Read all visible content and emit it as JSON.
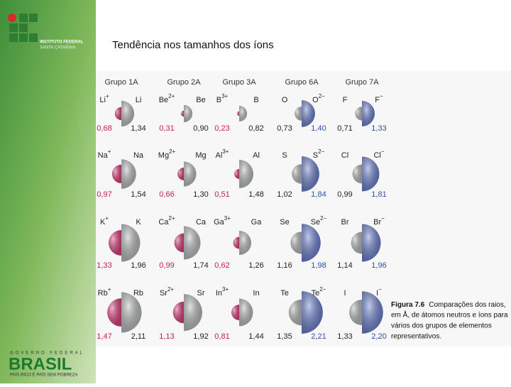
{
  "logo": {
    "line1": "INSTITUTO FEDERAL",
    "line2": "SANTA CATARINA"
  },
  "title": "Tendência nos tamanhos dos íons",
  "footer": {
    "top": "GOVERNO FEDERAL",
    "brand": "BRASIL",
    "slogan": "PAÍS RICO É PAÍS SEM POBREZA"
  },
  "figure": {
    "groups": [
      {
        "name": "Grupo 1A",
        "ion_side": "left",
        "ion_color": "#e0407f",
        "rows": [
          [
            {
              "symbol": "Li",
              "charge": "+",
              "radius": {
                "value": 0.68,
                "label": "0,68"
              }
            },
            {
              "symbol": "Li",
              "radius": {
                "value": 1.34,
                "label": "1,34"
              }
            }
          ],
          [
            {
              "symbol": "Na",
              "charge": "+",
              "radius": {
                "value": 0.97,
                "label": "0,97"
              }
            },
            {
              "symbol": "Na",
              "radius": {
                "value": 1.54,
                "label": "1,54"
              }
            }
          ],
          [
            {
              "symbol": "K",
              "charge": "+",
              "radius": {
                "value": 1.33,
                "label": "1,33"
              }
            },
            {
              "symbol": "K",
              "radius": {
                "value": 1.96,
                "label": "1,96"
              }
            }
          ],
          [
            {
              "symbol": "Rb",
              "charge": "+",
              "radius": {
                "value": 1.47,
                "label": "1,47"
              }
            },
            {
              "symbol": "Rb",
              "radius": {
                "value": 2.11,
                "label": "2,11"
              }
            }
          ]
        ]
      },
      {
        "name": "Grupo 2A",
        "ion_side": "left",
        "ion_color": "#e0407f",
        "rows": [
          [
            {
              "symbol": "Be",
              "charge": "2+",
              "radius": {
                "value": 0.31,
                "label": "0,31"
              }
            },
            {
              "symbol": "Be",
              "radius": {
                "value": 0.9,
                "label": "0,90"
              }
            }
          ],
          [
            {
              "symbol": "Mg",
              "charge": "2+",
              "radius": {
                "value": 0.66,
                "label": "0,66"
              }
            },
            {
              "symbol": "Mg",
              "radius": {
                "value": 1.3,
                "label": "1,30"
              }
            }
          ],
          [
            {
              "symbol": "Ca",
              "charge": "2+",
              "radius": {
                "value": 0.99,
                "label": "0,99"
              }
            },
            {
              "symbol": "Ca",
              "radius": {
                "value": 1.74,
                "label": "1,74"
              }
            }
          ],
          [
            {
              "symbol": "Sr",
              "charge": "2+",
              "radius": {
                "value": 1.13,
                "label": "1,13"
              }
            },
            {
              "symbol": "Sr",
              "radius": {
                "value": 1.92,
                "label": "1,92"
              }
            }
          ]
        ]
      },
      {
        "name": "Grupo 3A",
        "ion_side": "left",
        "ion_color": "#e0407f",
        "rows": [
          [
            {
              "symbol": "B",
              "charge": "3+",
              "radius": {
                "value": 0.23,
                "label": "0,23"
              }
            },
            {
              "symbol": "B",
              "radius": {
                "value": 0.82,
                "label": "0,82"
              }
            }
          ],
          [
            {
              "symbol": "Al",
              "charge": "3+",
              "radius": {
                "value": 0.51,
                "label": "0,51"
              }
            },
            {
              "symbol": "Al",
              "radius": {
                "value": 1.48,
                "label": "1,48"
              }
            }
          ],
          [
            {
              "symbol": "Ga",
              "charge": "3+",
              "radius": {
                "value": 0.62,
                "label": "0,62"
              }
            },
            {
              "symbol": "Ga",
              "radius": {
                "value": 1.26,
                "label": "1,26"
              }
            }
          ],
          [
            {
              "symbol": "In",
              "charge": "3+",
              "radius": {
                "value": 0.81,
                "label": "0,81"
              }
            },
            {
              "symbol": "In",
              "radius": {
                "value": 1.44,
                "label": "1,44"
              }
            }
          ]
        ]
      },
      {
        "name": "Grupo 6A",
        "ion_side": "right",
        "ion_color": "#6a7fd0",
        "rows": [
          [
            {
              "symbol": "O",
              "radius": {
                "value": 0.73,
                "label": "0,73"
              }
            },
            {
              "symbol": "O",
              "charge": "2−",
              "radius": {
                "value": 1.4,
                "label": "1,40"
              }
            }
          ],
          [
            {
              "symbol": "S",
              "radius": {
                "value": 1.02,
                "label": "1,02"
              }
            },
            {
              "symbol": "S",
              "charge": "2−",
              "radius": {
                "value": 1.84,
                "label": "1,84"
              }
            }
          ],
          [
            {
              "symbol": "Se",
              "radius": {
                "value": 1.16,
                "label": "1,16"
              }
            },
            {
              "symbol": "Se",
              "charge": "2−",
              "radius": {
                "value": 1.98,
                "label": "1,98"
              }
            }
          ],
          [
            {
              "symbol": "Te",
              "radius": {
                "value": 1.35,
                "label": "1,35"
              }
            },
            {
              "symbol": "Te",
              "charge": "2−",
              "radius": {
                "value": 2.21,
                "label": "2,21"
              }
            }
          ]
        ]
      },
      {
        "name": "Grupo 7A",
        "ion_side": "right",
        "ion_color": "#6a7fd0",
        "rows": [
          [
            {
              "symbol": "F",
              "radius": {
                "value": 0.71,
                "label": "0,71"
              }
            },
            {
              "symbol": "F",
              "charge": "−",
              "radius": {
                "value": 1.33,
                "label": "1,33"
              }
            }
          ],
          [
            {
              "symbol": "Cl",
              "radius": {
                "value": 0.99,
                "label": "0,99"
              }
            },
            {
              "symbol": "Cl",
              "charge": "−",
              "radius": {
                "value": 1.81,
                "label": "1,81"
              }
            }
          ],
          [
            {
              "symbol": "Br",
              "radius": {
                "value": 1.14,
                "label": "1,14"
              }
            },
            {
              "symbol": "Br",
              "charge": "−",
              "radius": {
                "value": 1.96,
                "label": "1,96"
              }
            }
          ],
          [
            {
              "symbol": "I",
              "radius": {
                "value": 1.33,
                "label": "1,33"
              }
            },
            {
              "symbol": "I",
              "charge": "−",
              "radius": {
                "value": 2.2,
                "label": "2,20"
              }
            }
          ]
        ]
      }
    ],
    "neutral_color": "#b9bdbd",
    "caption": {
      "label": "Figura 7.6",
      "lines": [
        "Comparações dos raios,",
        "em Å, de átomos neutros e íons para",
        "vários dos grupos de elementos",
        "representativos."
      ]
    }
  }
}
